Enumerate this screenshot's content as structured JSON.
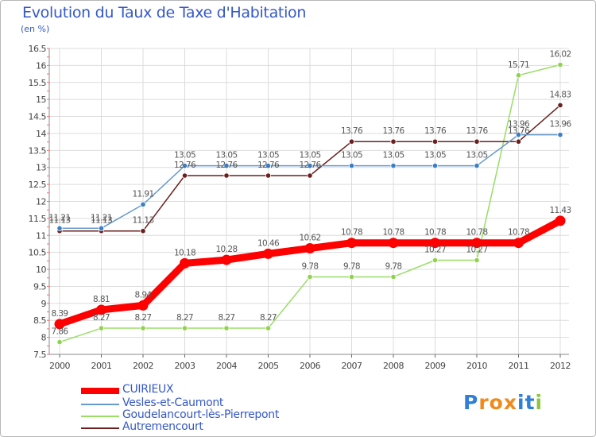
{
  "header": {
    "title": "Evolution du Taux de Taxe d'Habitation",
    "unit": "(en %)"
  },
  "logo": {
    "letters": [
      "P",
      "r",
      "o",
      "x",
      "i",
      "t",
      "i"
    ],
    "colors": [
      "#2e7fd6",
      "#f08a1c",
      "#f08a1c",
      "#f08a1c",
      "#2e7fd6",
      "#2e7fd6",
      "#8cc63f"
    ]
  },
  "chart_data": {
    "type": "line",
    "x": [
      "2000",
      "2001",
      "2002",
      "2003",
      "2004",
      "2005",
      "2006",
      "2007",
      "2008",
      "2009",
      "2010",
      "2011",
      "2012"
    ],
    "ylim": [
      7.5,
      16.5
    ],
    "yticks": [
      "7.5",
      "8",
      "8.5",
      "9",
      "9.5",
      "10",
      "10.5",
      "11",
      "11.5",
      "12",
      "12.5",
      "13",
      "13.5",
      "14",
      "14.5",
      "15",
      "15.5",
      "16",
      "16.5"
    ],
    "grid": true,
    "legend_position": "bottom-left",
    "series": [
      {
        "name": "CUIRIEUX",
        "color": "#ff0000",
        "values": [
          8.39,
          8.81,
          8.94,
          10.18,
          10.28,
          10.46,
          10.62,
          10.78,
          10.78,
          10.78,
          10.78,
          10.78,
          11.43
        ],
        "labels": [
          "8.39",
          "8.81",
          "8.94",
          "10.18",
          "10.28",
          "10.46",
          "10.62",
          "10.78",
          "10.78",
          "10.78",
          "10.78",
          "10.78",
          "11.43"
        ]
      },
      {
        "name": "Vesles-et-Caumont",
        "color": "#6699cc",
        "values": [
          11.21,
          11.21,
          11.91,
          13.05,
          13.05,
          13.05,
          13.05,
          13.05,
          13.05,
          13.05,
          13.05,
          13.96,
          13.96
        ],
        "labels": [
          "11.21",
          "11.21",
          "11.91",
          "13.05",
          "13.05",
          "13.05",
          "13.05",
          "13.05",
          "13.05",
          "13.05",
          "13.05",
          "13.96",
          "13.96"
        ]
      },
      {
        "name": "Goudelancourt-lès-Pierrepont",
        "color": "#99dd66",
        "values": [
          7.86,
          8.27,
          8.27,
          8.27,
          8.27,
          8.27,
          9.78,
          9.78,
          9.78,
          10.27,
          10.27,
          15.71,
          16.02
        ],
        "labels": [
          "7.86",
          "8.27",
          "8.27",
          "8.27",
          "8.27",
          "8.27",
          "9.78",
          "9.78",
          "9.78",
          "10.27",
          "10.27",
          "15.71",
          "16.02"
        ]
      },
      {
        "name": "Autremencourt",
        "color": "#6b1f1f",
        "values": [
          11.13,
          11.13,
          11.13,
          12.76,
          12.76,
          12.76,
          12.76,
          13.76,
          13.76,
          13.76,
          13.76,
          13.76,
          14.83
        ],
        "labels": [
          "11.13",
          "11.13",
          "11.13",
          "12.76",
          "12.76",
          "12.76",
          "12.76",
          "13.76",
          "13.76",
          "13.76",
          "13.76",
          "13.76",
          "14.83"
        ]
      }
    ]
  }
}
